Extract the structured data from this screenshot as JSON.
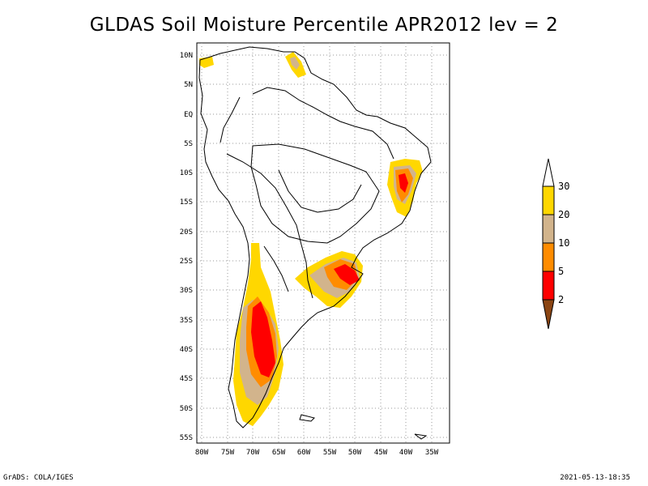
{
  "title": "GLDAS Soil Moisture Percentile APR2012 lev = 2",
  "footer": {
    "left": "GrADS: COLA/IGES",
    "right": "2021-05-13-18:35"
  },
  "axes": {
    "lon_labels": [
      "80W",
      "75W",
      "70W",
      "65W",
      "60W",
      "55W",
      "50W",
      "45W",
      "40W",
      "35W"
    ],
    "lat_labels": [
      "10N",
      "5N",
      "EQ",
      "5S",
      "10S",
      "15S",
      "20S",
      "25S",
      "30S",
      "35S",
      "40S",
      "45S",
      "50S",
      "55S"
    ]
  },
  "colorbar": {
    "labels": [
      "30",
      "20",
      "10",
      "5",
      "2"
    ],
    "colors": {
      "above_30": "#ffffff",
      "20_30": "#ffd700",
      "10_20": "#d2b48c",
      "5_10": "#ff8c00",
      "2_5": "#ff0000",
      "below_2": "#8b4513"
    }
  },
  "colors": {
    "coast": "#000000",
    "grid": "#9a9a9a"
  }
}
